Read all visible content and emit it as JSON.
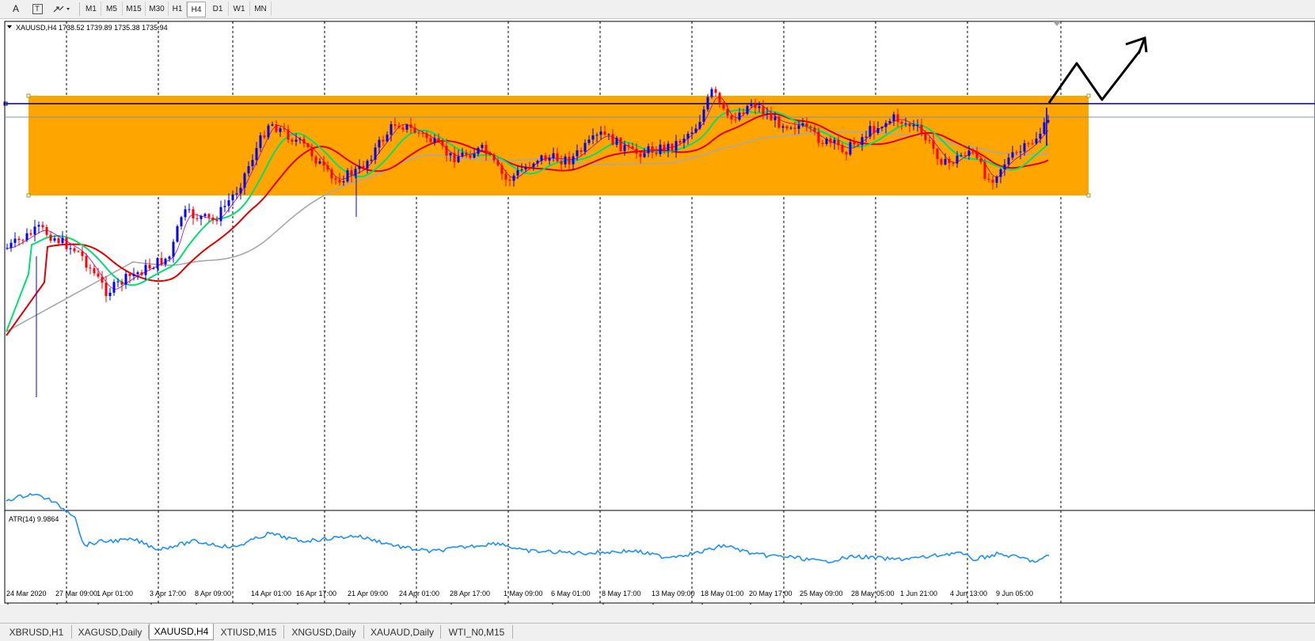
{
  "toolbar": {
    "tools": [
      {
        "label": "A",
        "icon": "text-icon"
      },
      {
        "label": "T",
        "icon": "text-label-icon"
      },
      {
        "label": "",
        "icon": "arrows-icon"
      }
    ],
    "timeframes": [
      "M1",
      "M5",
      "M15",
      "M30",
      "H1",
      "H4",
      "D1",
      "W1",
      "MN"
    ],
    "active_timeframe": "H4"
  },
  "chart": {
    "header": "XAUUSD,H4  1738.52 1739.89 1735.38 1735.94",
    "atr_label": "ATR(14) 9.9864",
    "date_labels": [
      "24 Mar 2020",
      "27 Mar 09:00",
      "1 Apr 01:00",
      "3 Apr 17:00",
      "8 Apr 09:00",
      "14 Apr 01:00",
      "16 Apr 17:00",
      "21 Apr 09:00",
      "24 Apr 01:00",
      "28 Apr 17:00",
      "1 May 09:00",
      "6 May 01:00",
      "8 May 17:00",
      "13 May 09:00",
      "18 May 01:00",
      "20 May 17:00",
      "25 May 09:00",
      "28 May 05:00",
      "1 Jun 21:00",
      "4 Jun 13:00",
      "9 Jun 05:00"
    ],
    "colors": {
      "zone": "#ffa500",
      "bull_candle": "#0000ff",
      "bear_candle": "#ff0000",
      "ma_fast": "#00e070",
      "ma_mid": "#e00000",
      "ma_slow": "#a8a8a8",
      "ma_thin": "#b000b0",
      "resistance_line": "#000080",
      "atr_line": "#1e90ff"
    }
  },
  "tabs": {
    "items": [
      "XBRUSD,H1",
      "XAGUSD,Daily",
      "XAUUSD,H4",
      "XTIUSD,M15",
      "XNGUSD,Daily",
      "XAUAUD,Daily",
      "WTI_N0,M15"
    ],
    "active": "XAUUSD,H4"
  }
}
